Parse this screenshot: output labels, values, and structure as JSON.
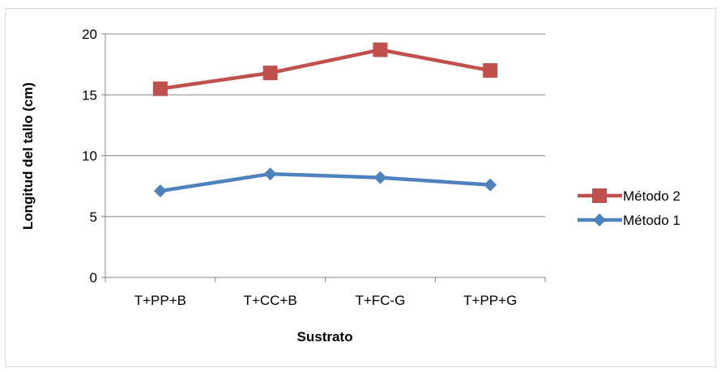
{
  "chart_data": {
    "type": "line",
    "title": "",
    "xlabel": "Sustrato",
    "ylabel": "Longitud del tallo (cm)",
    "categories": [
      "T+PP+B",
      "T+CC+B",
      "T+FC-G",
      "T+PP+G"
    ],
    "ylim": [
      0,
      20
    ],
    "yticks": [
      0,
      5,
      10,
      15,
      20
    ],
    "grid": true,
    "legend_position": "right",
    "series": [
      {
        "name": "Método 2",
        "values": [
          15.5,
          16.8,
          18.7,
          17.0
        ],
        "color": "#c0504d",
        "marker": "square"
      },
      {
        "name": "Método 1",
        "values": [
          7.1,
          8.5,
          8.2,
          7.6
        ],
        "color": "#4f81bd",
        "marker": "diamond"
      }
    ]
  }
}
